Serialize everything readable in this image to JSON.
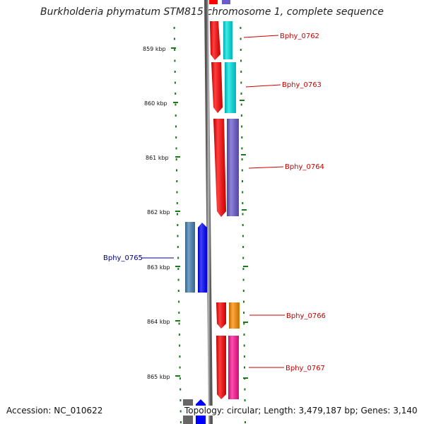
{
  "title": "Burkholderia phymatum STM815 chromosome 1, complete sequence",
  "footer": {
    "accession": "Accession: NC_010622",
    "summary": "Topology: circular; Length: 3,479,187 bp; Genes: 3,140"
  },
  "kbp_labels": [
    "859 kbp",
    "860 kbp",
    "861 kbp",
    "862 kbp",
    "863 kbp",
    "864 kbp",
    "865 kbp"
  ],
  "genes": [
    {
      "label": "Bphy_0762",
      "strand": "+",
      "cds_color": "#ff0000",
      "product_color": "#00e5e5",
      "label_color": "#cc0000"
    },
    {
      "label": "Bphy_0763",
      "strand": "+",
      "cds_color": "#ff0000",
      "product_color": "#00e5e5",
      "label_color": "#cc0000"
    },
    {
      "label": "Bphy_0764",
      "strand": "+",
      "cds_color": "#ff0000",
      "product_color": "#6a5acd",
      "label_color": "#cc0000"
    },
    {
      "label": "Bphy_0765",
      "strand": "-",
      "cds_color": "#0000ff",
      "product_color": "#4682b4",
      "label_color": "#00008b"
    },
    {
      "label": "Bphy_0766",
      "strand": "+",
      "cds_color": "#ff0000",
      "product_color": "#ff8c00",
      "label_color": "#cc0000"
    },
    {
      "label": "Bphy_0767",
      "strand": "+",
      "cds_color": "#ff0000",
      "product_color": "#ff1493",
      "label_color": "#cc0000"
    }
  ],
  "colors": {
    "backbone": "#888888",
    "ticks": "#1a7a1a"
  }
}
